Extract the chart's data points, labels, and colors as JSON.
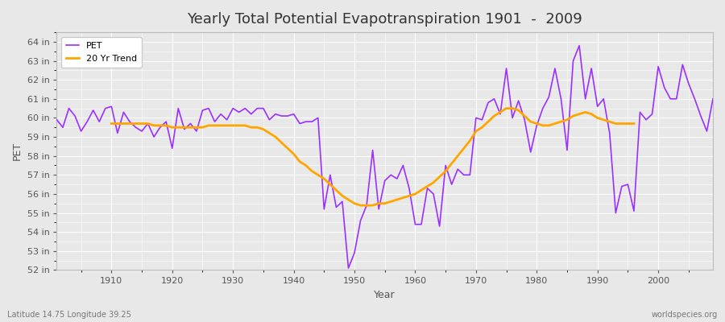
{
  "title": "Yearly Total Potential Evapotranspiration 1901  -  2009",
  "xlabel": "Year",
  "ylabel": "PET",
  "subtitle_left": "Latitude 14.75 Longitude 39.25",
  "subtitle_right": "worldspecies.org",
  "pet_color": "#9B30FF",
  "trend_color": "#FFA500",
  "background_color": "#E8E8E8",
  "grid_color": "#FFFFFF",
  "ylim": [
    52,
    64.5
  ],
  "yticks": [
    52,
    53,
    54,
    55,
    56,
    57,
    58,
    59,
    60,
    61,
    62,
    63,
    64
  ],
  "years": [
    1901,
    1902,
    1903,
    1904,
    1905,
    1906,
    1907,
    1908,
    1909,
    1910,
    1911,
    1912,
    1913,
    1914,
    1915,
    1916,
    1917,
    1918,
    1919,
    1920,
    1921,
    1922,
    1923,
    1924,
    1925,
    1926,
    1927,
    1928,
    1929,
    1930,
    1931,
    1932,
    1933,
    1934,
    1935,
    1936,
    1937,
    1938,
    1939,
    1940,
    1941,
    1942,
    1943,
    1944,
    1945,
    1946,
    1947,
    1948,
    1949,
    1950,
    1951,
    1952,
    1953,
    1954,
    1955,
    1956,
    1957,
    1958,
    1959,
    1960,
    1961,
    1962,
    1963,
    1964,
    1965,
    1966,
    1967,
    1968,
    1969,
    1970,
    1971,
    1972,
    1973,
    1974,
    1975,
    1976,
    1977,
    1978,
    1979,
    1980,
    1981,
    1982,
    1983,
    1984,
    1985,
    1986,
    1987,
    1988,
    1989,
    1990,
    1991,
    1992,
    1993,
    1994,
    1995,
    1996,
    1997,
    1998,
    1999,
    2000,
    2001,
    2002,
    2003,
    2004,
    2005,
    2006,
    2007,
    2008,
    2009
  ],
  "pet_values": [
    59.9,
    59.5,
    60.5,
    60.1,
    59.3,
    59.8,
    60.4,
    59.8,
    60.5,
    60.6,
    59.2,
    60.3,
    59.8,
    59.5,
    59.3,
    59.7,
    59.0,
    59.5,
    59.8,
    58.4,
    60.5,
    59.4,
    59.7,
    59.3,
    60.4,
    60.5,
    59.8,
    60.2,
    59.9,
    60.5,
    60.3,
    60.5,
    60.2,
    60.5,
    60.5,
    59.9,
    60.2,
    60.1,
    60.1,
    60.2,
    59.7,
    59.8,
    59.8,
    60.0,
    55.2,
    57.0,
    55.3,
    55.6,
    52.1,
    52.9,
    54.6,
    55.4,
    58.3,
    55.2,
    56.7,
    57.0,
    56.8,
    57.5,
    56.3,
    54.4,
    54.4,
    56.3,
    56.0,
    54.3,
    57.5,
    56.5,
    57.3,
    57.0,
    57.0,
    60.0,
    59.9,
    60.8,
    61.0,
    60.2,
    62.6,
    60.0,
    60.9,
    59.9,
    58.2,
    59.6,
    60.5,
    61.1,
    62.6,
    61.0,
    58.3,
    63.0,
    63.8,
    61.0,
    62.6,
    60.6,
    61.0,
    59.2,
    55.0,
    56.4,
    56.5,
    55.1,
    60.3,
    59.9,
    60.2,
    62.7,
    61.6,
    61.0,
    61.0,
    62.8,
    61.8,
    61.0,
    60.1,
    59.3,
    61.0
  ],
  "trend_values": [
    null,
    null,
    null,
    null,
    null,
    null,
    null,
    null,
    null,
    59.7,
    59.7,
    59.7,
    59.7,
    59.7,
    59.7,
    59.7,
    59.6,
    59.6,
    59.6,
    59.5,
    59.5,
    59.5,
    59.5,
    59.5,
    59.5,
    59.6,
    59.6,
    59.6,
    59.6,
    59.6,
    59.6,
    59.6,
    59.5,
    59.5,
    59.4,
    59.2,
    59.0,
    58.7,
    58.4,
    58.1,
    57.7,
    57.5,
    57.2,
    57.0,
    56.8,
    56.5,
    56.2,
    55.9,
    55.7,
    55.5,
    55.4,
    55.4,
    55.4,
    55.5,
    55.5,
    55.6,
    55.7,
    55.8,
    55.9,
    56.0,
    56.2,
    56.4,
    56.6,
    56.9,
    57.2,
    57.6,
    58.0,
    58.4,
    58.8,
    59.3,
    59.5,
    59.8,
    60.1,
    60.3,
    60.5,
    60.5,
    60.4,
    60.1,
    59.8,
    59.7,
    59.6,
    59.6,
    59.7,
    59.8,
    59.9,
    60.1,
    60.2,
    60.3,
    60.2,
    60.0,
    59.9,
    59.8,
    59.7,
    59.7,
    59.7,
    59.7,
    null,
    null,
    null,
    null,
    null,
    null,
    null,
    null,
    null,
    null,
    null,
    null
  ]
}
